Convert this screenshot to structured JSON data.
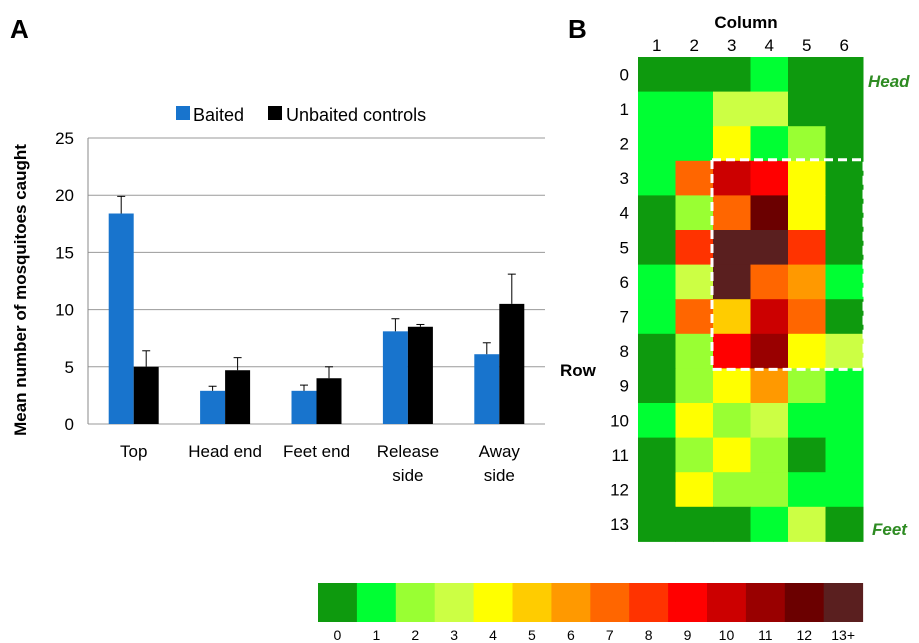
{
  "panel_a_letter": "A",
  "panel_b_letter": "B",
  "colors": {
    "baited": "#1874cd",
    "unbaited": "#000000"
  },
  "chart_data": [
    {
      "type": "bar",
      "ylabel": "Mean number of mosquitoes caught",
      "xlabel": "",
      "ylim": [
        0,
        25
      ],
      "yticks": [
        0,
        5,
        10,
        15,
        20,
        25
      ],
      "categories": [
        [
          "Top"
        ],
        [
          "Head end"
        ],
        [
          "Feet end"
        ],
        [
          "Release",
          "side"
        ],
        [
          "Away",
          "side"
        ]
      ],
      "legend_placement": "top",
      "series": [
        {
          "name": "Baited",
          "color": "#1874cd",
          "values": [
            18.4,
            2.9,
            2.9,
            8.1,
            6.1
          ],
          "errors": [
            1.5,
            0.4,
            0.5,
            1.1,
            1.0
          ]
        },
        {
          "name": "Unbaited controls",
          "color": "#000000",
          "values": [
            5.0,
            4.7,
            4.0,
            8.5,
            10.5
          ],
          "errors": [
            1.4,
            1.1,
            1.0,
            0.2,
            2.6
          ]
        }
      ]
    },
    {
      "type": "heatmap",
      "xlabel": "Column",
      "ylabel": "Row",
      "columns": [
        "1",
        "2",
        "3",
        "4",
        "5",
        "6"
      ],
      "rows": [
        "0",
        "1",
        "2",
        "3",
        "4",
        "5",
        "6",
        "7",
        "8",
        "9",
        "10",
        "11",
        "12",
        "13"
      ],
      "values": [
        [
          0,
          0,
          0,
          1,
          0,
          0
        ],
        [
          1,
          1,
          3,
          3,
          0,
          0
        ],
        [
          1,
          1,
          4,
          1,
          2,
          0
        ],
        [
          1,
          7,
          10,
          9,
          4,
          0
        ],
        [
          0,
          2,
          7,
          12,
          4,
          0
        ],
        [
          0,
          8,
          13,
          13,
          8,
          0
        ],
        [
          1,
          3,
          13,
          7,
          6,
          1
        ],
        [
          1,
          7,
          5,
          10,
          7,
          0
        ],
        [
          0,
          2,
          9,
          11,
          4,
          3
        ],
        [
          0,
          2,
          4,
          6,
          2,
          1
        ],
        [
          1,
          4,
          2,
          3,
          1,
          1
        ],
        [
          0,
          2,
          4,
          2,
          0,
          1
        ],
        [
          0,
          4,
          2,
          2,
          1,
          1
        ],
        [
          0,
          0,
          0,
          1,
          3,
          0
        ]
      ],
      "highlight": {
        "rows": [
          3,
          8
        ],
        "cols": [
          2,
          5
        ],
        "style": "white dashed box"
      },
      "side_labels": {
        "head": "Head",
        "feet": "Feet"
      },
      "side_label_color": "#2e8b22",
      "scale_labels": [
        "0",
        "1",
        "2",
        "3",
        "4",
        "5",
        "6",
        "7",
        "8",
        "9",
        "10",
        "11",
        "12",
        "13+"
      ],
      "scale_colors": [
        "#0e9a0e",
        "#00ff33",
        "#99ff33",
        "#ccff44",
        "#ffff00",
        "#ffcc00",
        "#ff9900",
        "#ff6600",
        "#ff3300",
        "#ff0000",
        "#cc0000",
        "#990000",
        "#6b0000",
        "#5a1f1f"
      ]
    }
  ]
}
